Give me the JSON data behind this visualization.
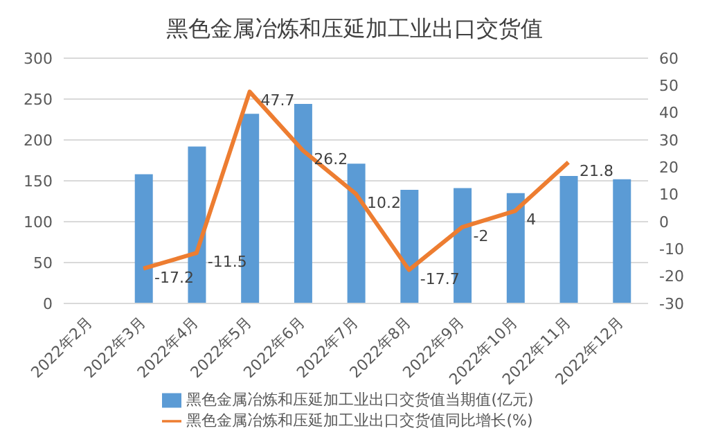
{
  "chart_data": {
    "type": "bar",
    "title": "黑色金属冶炼和压延加工业出口交货值",
    "categories": [
      "2022年2月",
      "2022年3月",
      "2022年4月",
      "2022年5月",
      "2022年6月",
      "2022年7月",
      "2022年8月",
      "2022年9月",
      "2022年10月",
      "2022年11月",
      "2022年12月"
    ],
    "series": [
      {
        "name": "黑色金属冶炼和压延加工业出口交货值当期值(亿元)",
        "color": "#5b9bd5",
        "values": [
          null,
          158,
          192,
          232,
          244,
          171,
          139,
          141,
          135,
          156,
          152
        ]
      },
      {
        "name": "黑色金属冶炼和压延加工业出口交货值同比增长(%)",
        "type": "line",
        "axis": "y2",
        "color": "#ed7d31",
        "values": [
          null,
          -17.2,
          -11.5,
          47.7,
          26.2,
          10.2,
          -17.7,
          -2,
          4,
          21.8,
          null
        ],
        "value_labels": [
          null,
          "-17.2",
          "-11.5",
          "47.7",
          "26.2",
          "10.2",
          "-17.7",
          "-2",
          "4",
          "21.8",
          null
        ]
      }
    ],
    "ylim": [
      0,
      300
    ],
    "yticks": [
      0,
      50,
      100,
      150,
      200,
      250,
      300
    ],
    "y2lim": [
      -30,
      60
    ],
    "y2ticks": [
      -30,
      -20,
      -10,
      0,
      10,
      20,
      30,
      40,
      50,
      60
    ],
    "grid": "y",
    "legend": "bottom",
    "marker": "none"
  }
}
